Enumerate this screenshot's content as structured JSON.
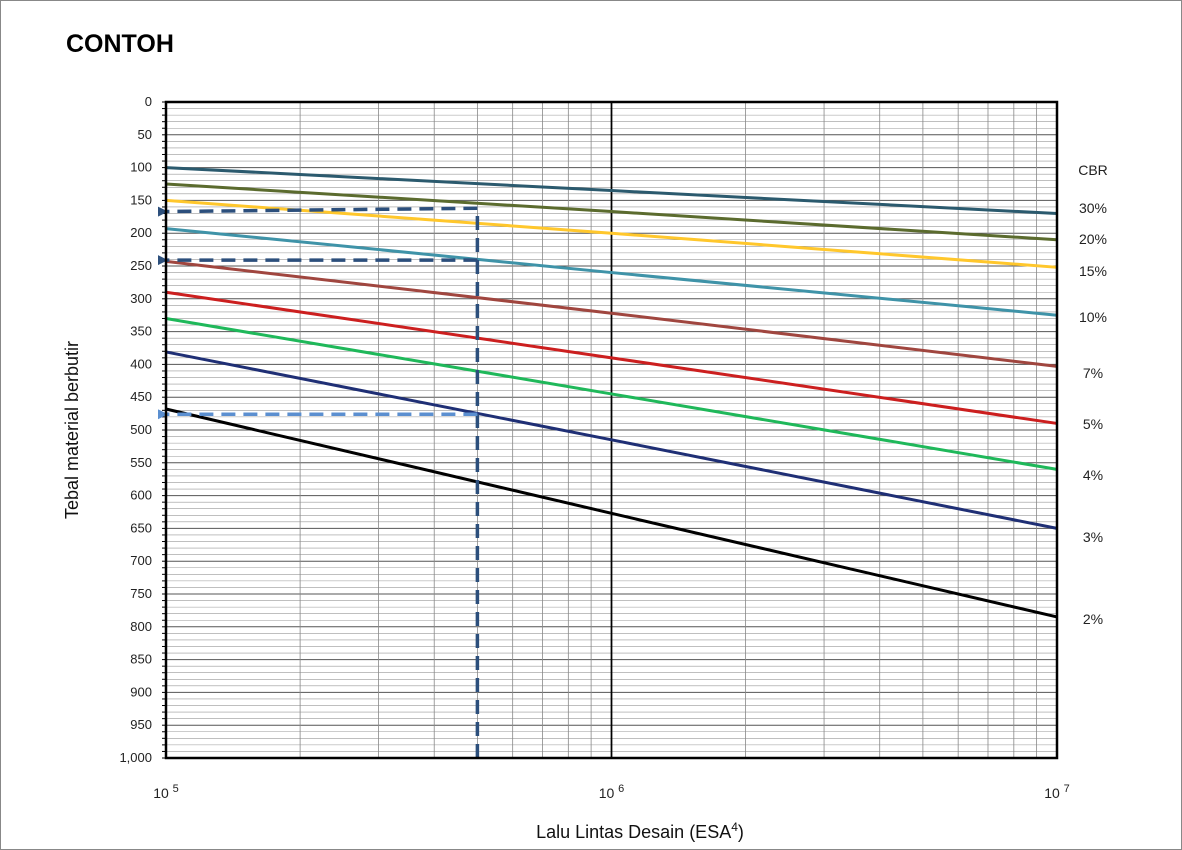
{
  "title": "CONTOH",
  "chart_data": {
    "type": "line",
    "x_scale": "log",
    "xlim": [
      100000,
      10000000
    ],
    "ylim": [
      0,
      1000
    ],
    "y_inverted": true,
    "xlabel_main": "Lalu Lintas Desain (ESA",
    "xlabel_sup": "4",
    "xlabel_end": ")",
    "ylabel": "Tebal material berbutir",
    "y_ticks": [
      "0",
      "50",
      "100",
      "150",
      "200",
      "250",
      "300",
      "350",
      "400",
      "450",
      "500",
      "550",
      "600",
      "650",
      "700",
      "750",
      "800",
      "850",
      "900",
      "950",
      "1,000"
    ],
    "x_ticks": [
      {
        "base": "10",
        "exp": "5",
        "value": 100000
      },
      {
        "base": "10",
        "exp": "6",
        "value": 1000000
      },
      {
        "base": "10",
        "exp": "7",
        "value": 10000000
      }
    ],
    "grid": true,
    "legend_title": "CBR",
    "series": [
      {
        "name": "30%",
        "color": "#2b5a6e",
        "x": [
          100000,
          1000000,
          10000000
        ],
        "values": [
          100,
          135,
          170
        ]
      },
      {
        "name": "20%",
        "color": "#5b6b2e",
        "x": [
          100000,
          1000000,
          10000000
        ],
        "values": [
          125,
          167,
          210
        ]
      },
      {
        "name": "15%",
        "color": "#ffc72c",
        "x": [
          100000,
          1000000,
          10000000
        ],
        "values": [
          150,
          200,
          252
        ]
      },
      {
        "name": "10%",
        "color": "#3f93a8",
        "x": [
          100000,
          1000000,
          10000000
        ],
        "values": [
          193,
          260,
          325
        ]
      },
      {
        "name": "7%",
        "color": "#a0463f",
        "x": [
          100000,
          1000000,
          10000000
        ],
        "values": [
          243,
          322,
          403
        ]
      },
      {
        "name": "5%",
        "color": "#cc1f1f",
        "x": [
          100000,
          1000000,
          10000000
        ],
        "values": [
          290,
          390,
          490
        ]
      },
      {
        "name": "4%",
        "color": "#1fb85a",
        "x": [
          100000,
          1000000,
          10000000
        ],
        "values": [
          330,
          445,
          560
        ]
      },
      {
        "name": "3%",
        "color": "#1f2f75",
        "x": [
          100000,
          1000000,
          10000000
        ],
        "values": [
          381,
          515,
          650
        ]
      },
      {
        "name": "2%",
        "color": "#000000",
        "x": [
          100000,
          1000000,
          10000000
        ],
        "values": [
          468,
          627,
          785
        ]
      }
    ],
    "example_lines": [
      {
        "color": "#2c4f7c",
        "x": [
          500000,
          500000
        ],
        "y": [
          1000,
          165
        ]
      },
      {
        "color": "#2c4f7c",
        "x": [
          500000,
          100000
        ],
        "y": [
          162,
          167
        ]
      },
      {
        "color": "#2c4f7c",
        "x": [
          500000,
          100000
        ],
        "y": [
          241,
          241
        ]
      },
      {
        "color": "#5b8fd0",
        "x": [
          500000,
          100000
        ],
        "y": [
          476,
          476
        ]
      }
    ]
  }
}
